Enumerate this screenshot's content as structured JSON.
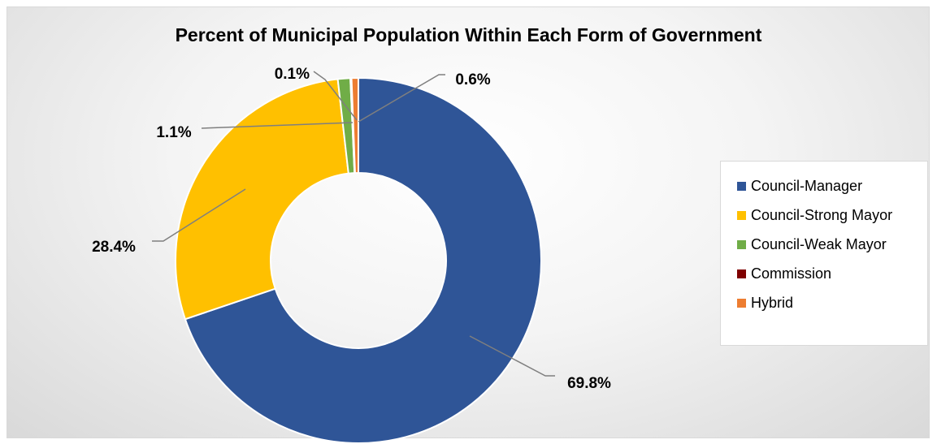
{
  "chart_data": {
    "type": "pie",
    "title": "Percent of Municipal Population Within Each Form of Government",
    "categories": [
      "Council-Manager",
      "Council-Strong Mayor",
      "Council-Weak Mayor",
      "Commission",
      "Hybrid"
    ],
    "values": [
      69.8,
      28.4,
      1.1,
      0.1,
      0.6
    ],
    "labels": [
      "69.8%",
      "28.4%",
      "1.1%",
      "0.1%",
      "0.6%"
    ],
    "colors": [
      "#2F5597",
      "#FFC000",
      "#70AD47",
      "#7F0000",
      "#ED7D31"
    ],
    "legend": "right",
    "style": "doughnut"
  }
}
